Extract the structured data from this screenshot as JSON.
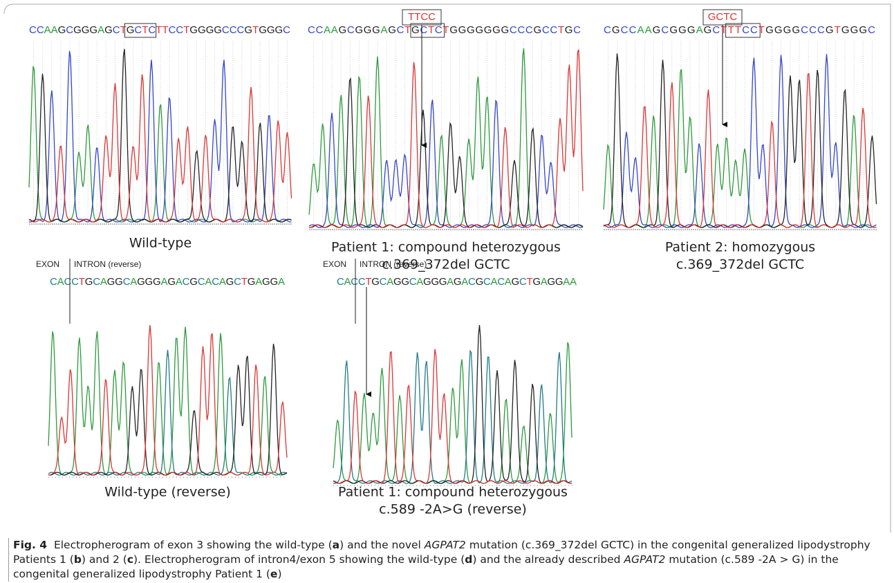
{
  "panels": [
    {
      "sequence": "CCAAGCGGGAGCTGCTCTTCCTGGGGCCCGTGGGC",
      "caption": [
        "Wild-type"
      ]
    },
    {
      "sequence": "CCAAGCGGGAGCTGCTCTGGGGGGGCCCGCCTGC",
      "box_label": "TTCC",
      "caption": [
        "Patient 1: compound heterozygous",
        "c.369_372del GCTC"
      ]
    },
    {
      "sequence": "CGCCAAGCGGGAGCTTTCCTGGGGCCCGTGGGC",
      "box_label": "GCTC",
      "caption": [
        "Patient 2: homozygous",
        "c.369_372del GCTC"
      ]
    },
    {
      "sequence": "CACCTGCAGGCAGGGAGACGCACAGCTGAGGA",
      "exon": "EXON",
      "intron": "INTRON (reverse)",
      "caption": [
        "Wild-type (reverse)"
      ]
    },
    {
      "sequence": "CACCTGCAGGCAGGGAGACGCACAGCTGAGGAA",
      "exon": "EXON",
      "intron": "INTRON (reverse)",
      "caption": [
        "Patient 1: compound heterozygous",
        "c.589 -2A>G (reverse)"
      ]
    }
  ],
  "figure_caption": {
    "label": "Fig. 4",
    "parts": [
      "Electropherogram of exon 3 showing the wild-type (",
      "a",
      ") and the novel ",
      "AGPAT2",
      " mutation (c.369_372del GCTC) in the congenital generalized lipodystrophy Patients 1 (",
      "b",
      ") and 2 (",
      "c",
      "). Electropherogram of intron4/exon 5 showing the wild-type (",
      "d",
      ") and the already described ",
      "AGPAT2",
      " mutation (c.589 -2A > G) in the congenital generalized lipodystrophy Patient 1 (",
      "e",
      ")"
    ]
  }
}
